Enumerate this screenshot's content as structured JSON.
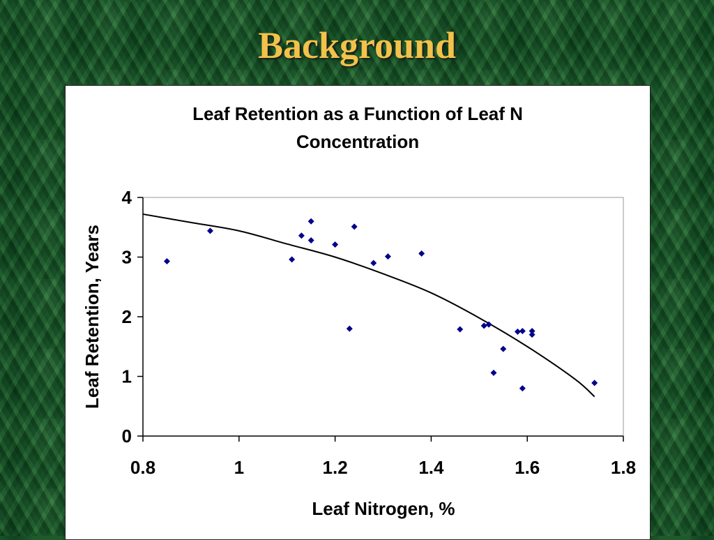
{
  "slide": {
    "title": "Background"
  },
  "chart_data": {
    "type": "scatter",
    "title_lines": [
      "Leaf Retention as a Function of Leaf N",
      "Concentration"
    ],
    "xlabel": "Leaf Nitrogen, %",
    "ylabel": "Leaf Retention, Years",
    "xlim": [
      0.8,
      1.8
    ],
    "ylim": [
      0,
      4
    ],
    "xticks": [
      "0.8",
      "1",
      "1.2",
      "1.4",
      "1.6",
      "1.8"
    ],
    "yticks": [
      "0",
      "1",
      "2",
      "3",
      "4"
    ],
    "grid": false,
    "legend": "none",
    "marker_color": "#00008b",
    "curve_color": "#000000",
    "series": [
      {
        "x": [
          0.85,
          0.94,
          1.11,
          1.13,
          1.15,
          1.15,
          1.2,
          1.23,
          1.24,
          1.28,
          1.31,
          1.38,
          1.46,
          1.51,
          1.52,
          1.53,
          1.55,
          1.58,
          1.59,
          1.59,
          1.61,
          1.61,
          1.74
        ],
        "y": [
          2.93,
          3.44,
          2.96,
          3.36,
          3.6,
          3.28,
          3.21,
          1.8,
          3.51,
          2.9,
          3.01,
          3.06,
          1.79,
          1.85,
          1.87,
          1.06,
          1.46,
          1.75,
          1.76,
          0.8,
          1.76,
          1.7,
          0.89
        ]
      }
    ],
    "trendline": {
      "x": [
        0.8,
        0.9,
        1.0,
        1.1,
        1.2,
        1.3,
        1.4,
        1.5,
        1.6,
        1.7,
        1.74
      ],
      "y": [
        3.72,
        3.58,
        3.44,
        3.22,
        3.0,
        2.72,
        2.4,
        1.98,
        1.5,
        0.95,
        0.66
      ]
    }
  }
}
